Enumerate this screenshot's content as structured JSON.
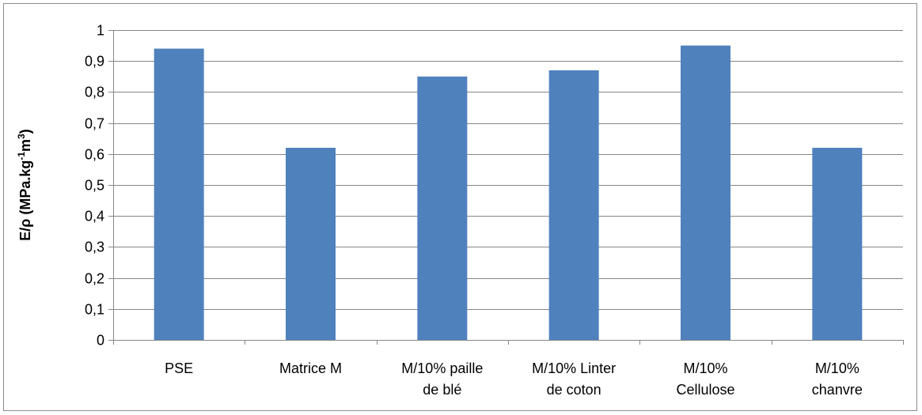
{
  "chart_data": {
    "type": "bar",
    "title": "",
    "xlabel": "",
    "ylabel": "E/ρ (MPa.kg⁻¹m³)",
    "ylabel_parts": {
      "main": "E/ρ (MPa.kg",
      "sup1": "-1",
      "mid": "m",
      "sup2": "3",
      "end": ")"
    },
    "ylim": [
      0,
      1
    ],
    "yticks": [
      0,
      0.1,
      0.2,
      0.3,
      0.4,
      0.5,
      0.6,
      0.7,
      0.8,
      0.9,
      1
    ],
    "ytick_labels": [
      "0",
      "0,1",
      "0,2",
      "0,3",
      "0,4",
      "0,5",
      "0,6",
      "0,7",
      "0,8",
      "0,9",
      "1"
    ],
    "grid": true,
    "legend": "none",
    "categories": [
      [
        "PSE"
      ],
      [
        "Matrice M"
      ],
      [
        "M/10% paille",
        "de blé"
      ],
      [
        "M/10% Linter",
        "de coton"
      ],
      [
        "M/10%",
        "Cellulose"
      ],
      [
        "M/10%",
        "chanvre"
      ]
    ],
    "values": [
      0.94,
      0.62,
      0.85,
      0.87,
      0.95,
      0.62
    ],
    "bar_color": "#4f81bd",
    "grid_color": "#868686",
    "axis_color": "#868686"
  }
}
